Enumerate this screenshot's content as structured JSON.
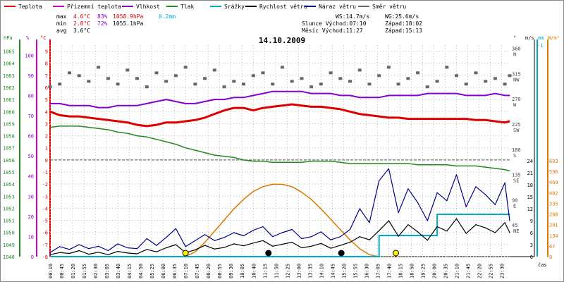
{
  "legend": [
    {
      "name": "Teplota",
      "color": "#dd0000"
    },
    {
      "name": "Přízemní teplota",
      "color": "#cc00cc"
    },
    {
      "name": "Vlhkost",
      "color": "#8800cc"
    },
    {
      "name": "Tlak",
      "color": "#228822"
    },
    {
      "name": "Srážky",
      "color": "#00aacc"
    },
    {
      "name": "Rychlost větru",
      "color": "#000000"
    },
    {
      "name": "Náraz větru",
      "color": "#000088"
    },
    {
      "name": "Směr větru",
      "color": "#666666"
    }
  ],
  "stats": {
    "max_label": "max",
    "min_label": "min",
    "avg_label": "avg",
    "max_temp": "4.6°C",
    "max_hum": "83%",
    "max_press": "1058.9hPa",
    "max_rain": "0.2mm",
    "min_temp": "2.8°C",
    "min_hum": "72%",
    "min_press": "1055.1hPa",
    "avg_temp": "3.6°C"
  },
  "info": {
    "ws": "WS:14.7m/s",
    "wg": "WG:25.6m/s",
    "sun_rise": "Slunce Východ:07:10",
    "sun_set": "Západ:18:02",
    "moon_rise": "Měsíc  Východ:11:27",
    "moon_set": "Západ:15:13"
  },
  "date_title": "14.10.2009",
  "axis_units": {
    "hpa": "hPa",
    "pct": "%",
    "degc": "°C",
    "ms": "m/s",
    "mm": "mm",
    "wm2": "W/m²",
    "deg": "°",
    "cas": "čas"
  },
  "colors": {
    "temp": "#dd0000",
    "humidity": "#8800cc",
    "pressure": "#228822",
    "rain": "#00aacc",
    "wind": "#000000",
    "gust": "#000088",
    "direction": "#666666",
    "solar": "#dd7700",
    "axis_red": "#cc0000",
    "axis_green": "#228822",
    "axis_cyan": "#00aacc",
    "axis_orange": "#dd7700"
  },
  "chart_data": {
    "type": "line",
    "x": [
      "00:10",
      "00:40",
      "01:10",
      "01:40",
      "02:10",
      "02:40",
      "03:10",
      "03:40",
      "04:10",
      "04:40",
      "05:10",
      "05:40",
      "06:10",
      "06:40",
      "07:10",
      "07:40",
      "08:10",
      "08:40",
      "09:10",
      "09:40",
      "10:10",
      "10:40",
      "11:10",
      "11:40",
      "12:10",
      "12:40",
      "13:10",
      "13:40",
      "14:10",
      "14:40",
      "15:10",
      "15:40",
      "16:10",
      "16:40",
      "17:10",
      "17:40",
      "18:10",
      "18:40",
      "19:10",
      "19:40",
      "20:10",
      "20:40",
      "21:10",
      "21:40",
      "22:10",
      "22:40",
      "23:10",
      "23:40",
      "23:55"
    ],
    "x_tick_labels": [
      "00:10",
      "00:45",
      "01:20",
      "01:55",
      "02:30",
      "03:05",
      "03:40",
      "04:15",
      "04:50",
      "05:25",
      "06:00",
      "06:35",
      "07:10",
      "07:45",
      "08:20",
      "08:55",
      "09:30",
      "10:05",
      "10:40",
      "11:15",
      "11:50",
      "12:25",
      "13:00",
      "13:35",
      "14:10",
      "14:45",
      "15:20",
      "15:55",
      "16:30",
      "17:05",
      "17:40",
      "18:15",
      "18:50",
      "19:25",
      "20:00",
      "20:35",
      "21:10",
      "21:45",
      "22:20",
      "22:55",
      "23:30"
    ],
    "x_tick_values": [
      10,
      45,
      80,
      115,
      150,
      185,
      220,
      255,
      290,
      325,
      360,
      395,
      430,
      465,
      500,
      535,
      570,
      605,
      640,
      675,
      710,
      745,
      780,
      815,
      850,
      885,
      920,
      955,
      990,
      1025,
      1060,
      1095,
      1130,
      1165,
      1200,
      1235,
      1270,
      1305,
      1340,
      1375,
      1410
    ],
    "x_range_minutes": [
      10,
      1435
    ],
    "xlabel": "čas",
    "series": [
      {
        "name": "Teplota",
        "axis": "°C",
        "color": "#dd0000",
        "values": [
          4.0,
          3.7,
          3.6,
          3.6,
          3.5,
          3.4,
          3.3,
          3.2,
          3.1,
          2.9,
          2.8,
          2.9,
          3.1,
          3.1,
          3.2,
          3.3,
          3.5,
          3.8,
          4.1,
          4.3,
          4.3,
          4.1,
          4.3,
          4.4,
          4.5,
          4.6,
          4.5,
          4.4,
          4.4,
          4.3,
          4.2,
          4.0,
          3.8,
          3.7,
          3.6,
          3.5,
          3.5,
          3.4,
          3.4,
          3.4,
          3.4,
          3.4,
          3.4,
          3.4,
          3.3,
          3.3,
          3.2,
          3.1,
          3.2
        ]
      },
      {
        "name": "Vlhkost",
        "axis": "%",
        "color": "#8800cc",
        "values": [
          76,
          76,
          75,
          75,
          75,
          74,
          74,
          75,
          75,
          75,
          76,
          77,
          78,
          77,
          76,
          76,
          77,
          78,
          78,
          79,
          79,
          80,
          81,
          82,
          82,
          82,
          82,
          81,
          81,
          81,
          80,
          80,
          79,
          79,
          79,
          80,
          80,
          80,
          80,
          81,
          81,
          81,
          81,
          80,
          80,
          80,
          81,
          80,
          80
        ]
      },
      {
        "name": "Tlak",
        "axis": "hPa",
        "color": "#228822",
        "values": [
          1058.7,
          1058.8,
          1058.8,
          1058.8,
          1058.7,
          1058.6,
          1058.5,
          1058.3,
          1058.2,
          1058.0,
          1057.9,
          1057.7,
          1057.5,
          1057.3,
          1057.0,
          1056.8,
          1056.6,
          1056.4,
          1056.3,
          1056.2,
          1056.0,
          1055.9,
          1055.9,
          1055.8,
          1055.8,
          1055.8,
          1055.8,
          1055.9,
          1055.9,
          1055.9,
          1055.8,
          1055.7,
          1055.7,
          1055.7,
          1055.7,
          1055.7,
          1055.7,
          1055.7,
          1055.6,
          1055.6,
          1055.6,
          1055.6,
          1055.5,
          1055.5,
          1055.5,
          1055.4,
          1055.3,
          1055.2,
          1055.1
        ]
      },
      {
        "name": "Rychlost větru",
        "axis": "m/s",
        "color": "#000000",
        "values": [
          0.5,
          1.0,
          0.8,
          1.5,
          0.6,
          1.1,
          0.5,
          1.3,
          0.9,
          0.7,
          1.8,
          1.2,
          2.2,
          3.0,
          1.0,
          1.7,
          2.8,
          1.9,
          2.3,
          3.2,
          2.7,
          3.4,
          4.0,
          2.6,
          3.1,
          3.6,
          2.2,
          2.6,
          3.3,
          2.1,
          2.8,
          3.6,
          5.0,
          4.2,
          6.5,
          9.0,
          5.1,
          8.0,
          6.2,
          4.1,
          7.5,
          6.4,
          9.5,
          5.8,
          8.0,
          7.2,
          6.0,
          8.5,
          6.0
        ]
      },
      {
        "name": "Náraz větru",
        "axis": "m/s",
        "color": "#000088",
        "values": [
          1.0,
          2.5,
          1.8,
          3.0,
          2.0,
          2.6,
          1.5,
          3.2,
          2.2,
          2.0,
          4.5,
          2.8,
          4.8,
          7.0,
          2.5,
          4.0,
          5.5,
          4.0,
          4.8,
          6.0,
          5.2,
          6.6,
          7.5,
          5.0,
          6.0,
          6.8,
          4.5,
          5.0,
          6.2,
          4.2,
          5.0,
          6.8,
          12.0,
          8.5,
          19.0,
          22.0,
          11.0,
          17.0,
          13.5,
          9.0,
          16.0,
          14.0,
          20.5,
          12.5,
          17.5,
          15.5,
          13.0,
          18.5,
          9.0
        ]
      },
      {
        "name": "Srážky",
        "axis": "mm",
        "color": "#00aacc",
        "values": [
          0,
          0,
          0,
          0,
          0,
          0,
          0,
          0,
          0,
          0,
          0,
          0,
          0,
          0,
          0,
          0,
          0,
          0,
          0,
          0,
          0,
          0,
          0,
          0,
          0,
          0,
          0,
          0,
          0,
          0,
          0,
          0,
          0,
          0,
          0.1,
          0.1,
          0.1,
          0.1,
          0.1,
          0.1,
          0.2,
          0.2,
          0.2,
          0.2,
          0.2,
          0.2,
          0.2,
          0.2,
          0.2
        ]
      },
      {
        "name": "Sluneční záření",
        "axis": "W/m²",
        "color": "#dd7700",
        "values": [
          0,
          0,
          0,
          0,
          0,
          0,
          0,
          0,
          0,
          0,
          0,
          0,
          0,
          0,
          0,
          30,
          90,
          160,
          230,
          300,
          360,
          410,
          440,
          455,
          455,
          440,
          405,
          360,
          300,
          235,
          170,
          105,
          50,
          12,
          0,
          0,
          0,
          0,
          0,
          0,
          0,
          0,
          0,
          0,
          0,
          0,
          0,
          0,
          0
        ]
      },
      {
        "name": "Směr větru",
        "axis": "°",
        "color": "#666666",
        "values": [
          295,
          300,
          320,
          315,
          305,
          330,
          310,
          300,
          325,
          310,
          295,
          320,
          305,
          315,
          330,
          300,
          310,
          325,
          295,
          305,
          300,
          315,
          320,
          300,
          330,
          305,
          310,
          295,
          300,
          320,
          310,
          305,
          325,
          300,
          315,
          330,
          300,
          310,
          320,
          295,
          305,
          330,
          315,
          300,
          320,
          305,
          310,
          300,
          315
        ]
      }
    ],
    "axes": {
      "hpa": {
        "label": "hPa",
        "ticks": [
          1048,
          1049,
          1050,
          1051,
          1052,
          1053,
          1054,
          1055,
          1056,
          1057,
          1058,
          1059,
          1060,
          1061,
          1062,
          1063,
          1064,
          1065
        ],
        "range": [
          1048,
          1065.5
        ]
      },
      "pct": {
        "label": "%",
        "ticks": [
          0,
          10,
          20,
          30,
          40,
          50,
          60,
          70,
          80,
          90,
          100
        ],
        "range": [
          0,
          105
        ]
      },
      "degc": {
        "label": "°C",
        "ticks": [
          -8,
          -7,
          -6,
          -5,
          -4,
          -3,
          -2,
          -1,
          0,
          1,
          2,
          3,
          4,
          5,
          6,
          7,
          8,
          9
        ],
        "range": [
          -8,
          9.5
        ]
      },
      "deg": {
        "label": "°",
        "ticks": [
          "360 N",
          "315 NW",
          "270 W",
          "225 SW",
          "180 S",
          "135 SE",
          "90 E",
          "45 NE"
        ],
        "values": [
          360,
          315,
          270,
          225,
          180,
          135,
          90,
          45
        ]
      },
      "ms": {
        "label": "m/s",
        "ticks": [
          0,
          3,
          6,
          9,
          12,
          15,
          18,
          21,
          24
        ],
        "range": [
          0,
          24
        ]
      },
      "mm": {
        "label": "mm",
        "ticks": [
          "-1"
        ]
      },
      "wm2": {
        "label": "W/m²",
        "ticks": [
          0,
          67,
          134,
          201,
          268,
          335,
          402,
          469,
          536,
          603
        ],
        "range": [
          0,
          603
        ]
      }
    },
    "markers": [
      {
        "type": "sunrise",
        "time": "07:10",
        "color": "#ffee00"
      },
      {
        "type": "sunset",
        "time": "18:02",
        "color": "#ffee00"
      },
      {
        "type": "moonrise",
        "time": "11:27",
        "color": "#000000"
      },
      {
        "type": "moonset",
        "time": "15:13",
        "color": "#000000"
      }
    ],
    "title": "14.10.2009",
    "grid": true
  }
}
